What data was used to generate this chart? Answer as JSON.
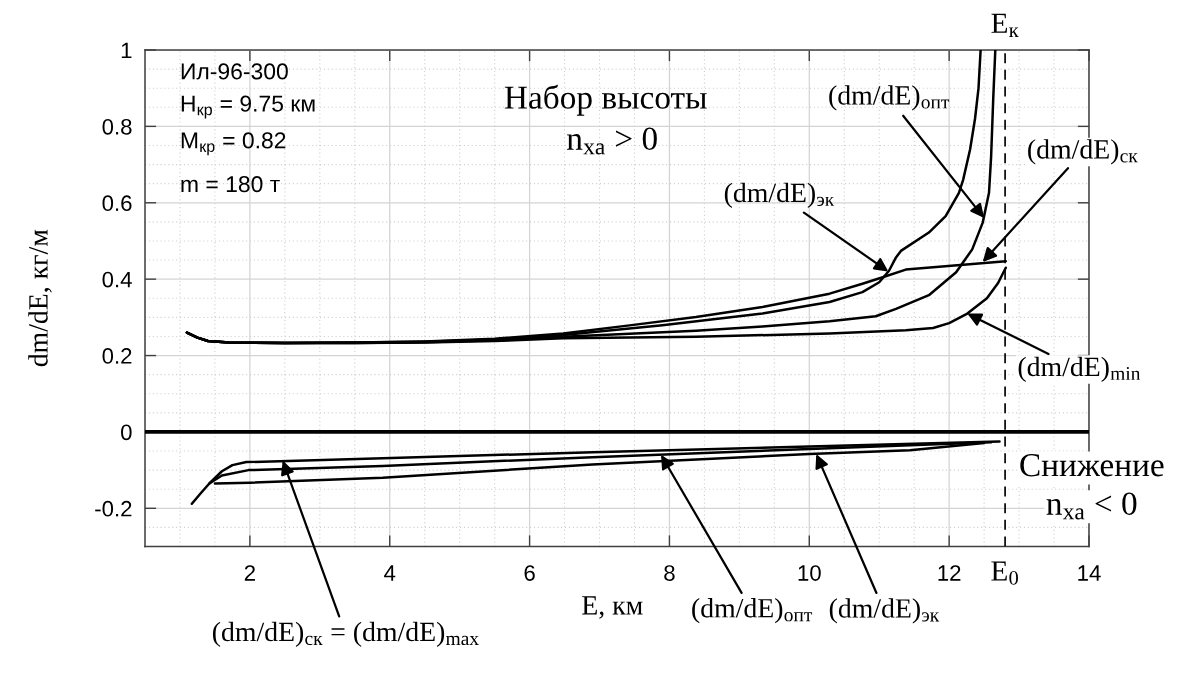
{
  "chart_data": {
    "type": "line",
    "xlabel": "E, км",
    "ylabel": "dm/dE, кг/м",
    "xlim": [
      0.5,
      14
    ],
    "ylim": [
      -0.3,
      1
    ],
    "xticks": [
      2,
      4,
      6,
      8,
      10,
      12,
      14
    ],
    "yticks": [
      -0.2,
      0,
      0.2,
      0.4,
      0.6,
      0.8,
      1
    ],
    "grid": true,
    "series": [
      {
        "color": "#000000",
        "x": [
          1.1,
          1.25,
          1.4,
          1.7,
          2.5,
          3.5,
          4.5,
          5.5,
          6.48,
          7.43,
          8.38,
          9.33,
          10.29,
          10.76,
          11.05,
          11.38,
          12.81
        ],
        "values": [
          0.26,
          0.247,
          0.238,
          0.234,
          0.233,
          0.234,
          0.237,
          0.244,
          0.258,
          0.279,
          0.301,
          0.327,
          0.362,
          0.388,
          0.405,
          0.425,
          0.447
        ]
      },
      {
        "color": "#000000",
        "x": [
          1.1,
          1.25,
          1.4,
          1.7,
          2.5,
          3.5,
          4.5,
          5.5,
          6.48,
          7.9,
          9.33,
          10.29,
          10.76,
          11.0,
          11.14,
          11.24,
          11.31,
          11.71,
          11.95,
          12.14,
          12.2,
          12.3,
          12.37,
          12.42,
          12.45
        ],
        "values": [
          0.26,
          0.247,
          0.238,
          0.234,
          0.233,
          0.234,
          0.236,
          0.242,
          0.254,
          0.279,
          0.31,
          0.34,
          0.366,
          0.392,
          0.422,
          0.457,
          0.474,
          0.522,
          0.565,
          0.626,
          0.66,
          0.74,
          0.82,
          0.9,
          1.0
        ]
      },
      {
        "color": "#000000",
        "x": [
          1.1,
          1.25,
          1.4,
          1.7,
          2.5,
          3.5,
          4.5,
          5.5,
          6.48,
          8.38,
          9.33,
          10.29,
          10.95,
          11.24,
          11.71,
          12.1,
          12.33,
          12.48,
          12.57,
          12.6,
          12.63,
          12.66
        ],
        "values": [
          0.26,
          0.247,
          0.238,
          0.234,
          0.233,
          0.233,
          0.235,
          0.24,
          0.249,
          0.265,
          0.276,
          0.29,
          0.303,
          0.322,
          0.358,
          0.418,
          0.478,
          0.548,
          0.626,
          0.72,
          0.87,
          1.0
        ]
      },
      {
        "color": "#000000",
        "x": [
          1.1,
          1.25,
          1.4,
          1.7,
          2.5,
          3.5,
          4.5,
          5.5,
          6.48,
          8.38,
          10.29,
          11.38,
          11.77,
          12.0,
          12.26,
          12.54,
          12.7,
          12.81
        ],
        "values": [
          0.26,
          0.247,
          0.238,
          0.234,
          0.233,
          0.233,
          0.234,
          0.238,
          0.245,
          0.249,
          0.258,
          0.266,
          0.272,
          0.285,
          0.31,
          0.35,
          0.39,
          0.43
        ]
      },
      {
        "color": "#000000",
        "x": [
          1.17,
          1.3,
          1.42,
          1.6,
          1.75,
          1.95,
          3.9,
          6.9,
          10.0,
          12.72
        ],
        "values": [
          -0.188,
          -0.16,
          -0.135,
          -0.103,
          -0.087,
          -0.079,
          -0.069,
          -0.053,
          -0.038,
          -0.025
        ]
      },
      {
        "color": "#000000",
        "x": [
          1.42,
          1.6,
          1.98,
          3.9,
          6.9,
          10.0,
          12.6
        ],
        "values": [
          -0.135,
          -0.114,
          -0.1,
          -0.089,
          -0.066,
          -0.045,
          -0.027
        ]
      },
      {
        "color": "#000000",
        "x": [
          1.5,
          2.0,
          3.9,
          6.9,
          10.0,
          11.44,
          12.5
        ],
        "values": [
          -0.135,
          -0.133,
          -0.12,
          -0.085,
          -0.058,
          -0.048,
          -0.029
        ]
      }
    ],
    "ref_lines": [
      {
        "axis": "y",
        "value": 0,
        "line_style": "solid",
        "color": "#000000"
      },
      {
        "axis": "x",
        "value": 12.8,
        "label": "E$_{0}$",
        "line_style": "dashed",
        "color": "#000000"
      }
    ],
    "annotations": [
      "Ил-96-300",
      "H$_{кр}$ = 9.75 км",
      "M$_{кр}$ = 0.82",
      "m = 180 т",
      "Набор высоты",
      "n$_{xa}$ > 0",
      "Снижение",
      "n$_{xa}$ < 0",
      {
        "text": "E$_{к}$",
        "x": 12.8,
        "y": 1
      },
      {
        "text": "(dm/dE)$_{эк}$",
        "x": 11.13,
        "y": 0.42
      },
      {
        "text": "(dm/dE)$_{опт}$",
        "x": 12.5,
        "y": 0.56
      },
      {
        "text": "(dm/dE)$_{ск}$",
        "x": 12.48,
        "y": 0.445
      },
      {
        "text": "(dm/dE)$_{min}$",
        "x": 12.26,
        "y": 0.31
      },
      {
        "text": "(dm/dE)$_{ск}$ = (dm/dE)$_{max}$",
        "x": 2.47,
        "y": -0.075
      },
      {
        "text": "(dm/dE)$_{опт}$",
        "x": 7.88,
        "y": -0.06
      },
      {
        "text": "(dm/dE)$_{эк}$",
        "x": 10.1,
        "y": -0.058
      }
    ]
  }
}
